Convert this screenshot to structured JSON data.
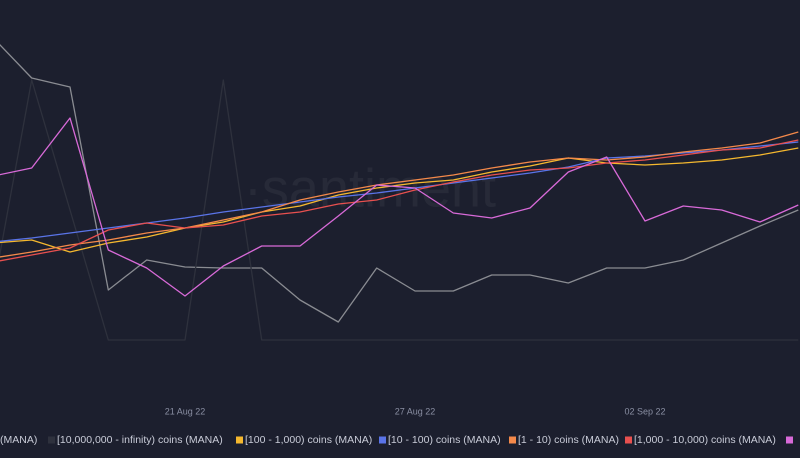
{
  "chart_data": {
    "type": "line",
    "watermark": "·santiment",
    "categories": [
      null,
      null,
      null,
      null,
      null,
      "21 Aug 22",
      null,
      null,
      null,
      null,
      null,
      "27 Aug 22",
      null,
      null,
      null,
      null,
      null,
      "02 Sep 22",
      null,
      null,
      null,
      null
    ],
    "ylim": [
      0,
      400
    ],
    "grid": false,
    "legend": "bottom",
    "series": [
      {
        "name": "(MANA)",
        "color": "#8a8c92",
        "values": [
          362,
          322,
          313,
          110,
          140,
          133,
          132,
          132,
          100,
          78,
          132,
          109,
          109,
          125,
          125,
          117,
          132,
          132,
          140,
          157,
          174,
          190
        ]
      },
      {
        "name": "[10,000,000 - infinity) coins (MANA)",
        "color": "#2e313d",
        "values": [
          110,
          320,
          190,
          60,
          60,
          60,
          320,
          60,
          60,
          60,
          60,
          60,
          60,
          60,
          60,
          60,
          60,
          60,
          60,
          60,
          60,
          60
        ]
      },
      {
        "name": "[100 - 1,000) coins (MANA)",
        "color": "#f5b82e",
        "values": [
          157,
          160,
          148,
          157,
          163,
          172,
          178,
          188,
          194,
          205,
          212,
          217,
          220,
          228,
          234,
          242,
          237,
          235,
          237,
          240,
          245,
          252
        ]
      },
      {
        "name": "[10 - 100) coins (MANA)",
        "color": "#5a74e8",
        "values": [
          158,
          162,
          167,
          172,
          177,
          182,
          188,
          193,
          198,
          203,
          207,
          212,
          217,
          222,
          227,
          233,
          242,
          244,
          247,
          250,
          254,
          258
        ]
      },
      {
        "name": "[1 - 10) coins (MANA)",
        "color": "#f4894a",
        "values": [
          142,
          148,
          155,
          160,
          167,
          172,
          180,
          188,
          200,
          208,
          215,
          220,
          225,
          232,
          238,
          242,
          240,
          243,
          248,
          252,
          257,
          268
        ]
      },
      {
        "name": "[1,000 - 10,000) coins (MANA)",
        "color": "#e8504f",
        "values": [
          138,
          145,
          152,
          170,
          177,
          172,
          175,
          184,
          188,
          196,
          200,
          210,
          218,
          225,
          230,
          232,
          237,
          240,
          245,
          250,
          252,
          260
        ]
      },
      {
        "color": "#d86ad8",
        "values": [
          224,
          232,
          282,
          150,
          132,
          104,
          134,
          154,
          154,
          184,
          215,
          212,
          187,
          182,
          192,
          228,
          243,
          179,
          194,
          190,
          178,
          195
        ]
      }
    ]
  }
}
